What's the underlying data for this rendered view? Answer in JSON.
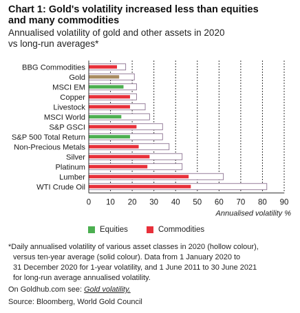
{
  "header": {
    "title_line1": "Chart 1: Gold's volatility increased less than equities",
    "title_line2": "and many commodities",
    "subtitle_line1": "Annualised volatility of gold and other assets in 2020",
    "subtitle_line2": "vs long-run averages*"
  },
  "legend": {
    "equities_label": "Equities",
    "commodities_label": "Commodities"
  },
  "colors": {
    "equities": "#4caf50",
    "commodities": "#e8303a",
    "gold": "#a88b60",
    "hollow_stroke": "#8a7090",
    "grid": "#333333"
  },
  "chart_data": {
    "type": "bar",
    "orientation": "horizontal",
    "categories": [
      "BBG Commodities",
      "Gold",
      "MSCI EM",
      "Copper",
      "Livestock",
      "MSCI World",
      "S&P GSCI",
      "S&P 500 Total Return",
      "Non-Precious Metals",
      "Silver",
      "Platinum",
      "Lumber",
      "WTI Crude Oil"
    ],
    "groups": [
      "Commodities",
      "Gold",
      "Equities",
      "Commodities",
      "Commodities",
      "Equities",
      "Commodities",
      "Equities",
      "Commodities",
      "Commodities",
      "Commodities",
      "Commodities",
      "Commodities"
    ],
    "series": [
      {
        "name": "2020 (hollow colour)",
        "style": "hollow",
        "values": [
          17,
          21,
          22,
          22,
          26,
          28,
          34,
          34,
          37,
          43,
          43,
          62,
          82
        ]
      },
      {
        "name": "long-run average (solid colour)",
        "style": "solid",
        "values": [
          13,
          14,
          16,
          19,
          19,
          15,
          22,
          19,
          23,
          28,
          27,
          46,
          47
        ]
      }
    ],
    "xlabel": "Annualised volatility %",
    "xlim": [
      0,
      90
    ],
    "xticks": [
      "0",
      "10",
      "20",
      "30",
      "40",
      "50",
      "60",
      "70",
      "80",
      "90"
    ],
    "grid": "vertical dashed"
  },
  "footnote": {
    "line1": "*Daily annualised volatility of various asset classes in 2020 (hollow colour),",
    "line2": "versus ten-year average (solid colour). Data from 1 January 2020 to",
    "line3": "31 December 2020 for 1-year volatility, and 1 June 2011 to 30 June 2021",
    "line4": "for long-run average annualised volatility."
  },
  "link": {
    "prefix": "On Goldhub.com see: ",
    "text": "Gold volatility."
  },
  "source": "Source: Bloomberg, World Gold Council"
}
